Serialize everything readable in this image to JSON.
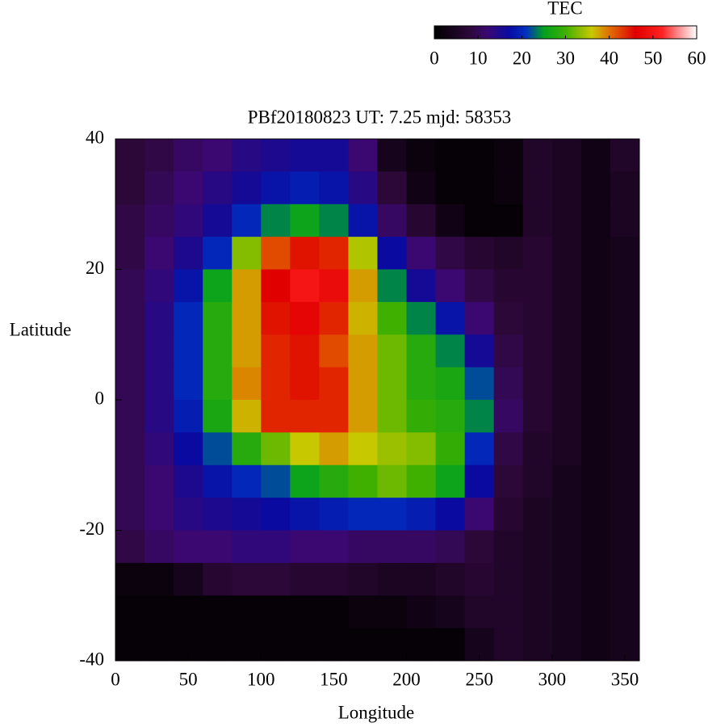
{
  "chart_data": {
    "type": "heatmap",
    "title": "PBf20180823  UT: 7.25  mjd: 58353",
    "x_label": "Longitude",
    "y_label": "Latitude",
    "colorbar_label": "TEC",
    "x": [
      10,
      30,
      50,
      70,
      90,
      110,
      130,
      150,
      170,
      190,
      210,
      230,
      250,
      270,
      290,
      310,
      330,
      350
    ],
    "y": [
      37.5,
      32.5,
      27.5,
      22.5,
      17.5,
      12.5,
      7.5,
      2.5,
      -2.5,
      -7.5,
      -12.5,
      -17.5,
      -22.5,
      -27.5,
      -32.5,
      -37.5
    ],
    "z": [
      [
        8,
        9,
        11,
        12,
        14,
        15,
        16,
        16,
        12,
        4,
        2,
        1,
        1,
        2,
        6,
        5,
        3,
        6
      ],
      [
        8,
        10,
        12,
        14,
        16,
        18,
        19,
        18,
        14,
        8,
        3,
        1,
        1,
        2,
        6,
        5,
        3,
        5
      ],
      [
        9,
        11,
        13,
        16,
        20,
        24,
        26,
        24,
        18,
        11,
        7,
        3,
        1,
        1,
        6,
        5,
        3,
        5
      ],
      [
        9,
        12,
        15,
        20,
        33,
        42,
        45,
        44,
        35,
        17,
        12,
        9,
        7,
        6,
        7,
        5,
        3,
        4
      ],
      [
        10,
        13,
        18,
        26,
        38,
        46,
        50,
        48,
        38,
        24,
        16,
        12,
        9,
        7,
        7,
        5,
        3,
        4
      ],
      [
        10,
        14,
        20,
        28,
        38,
        45,
        47,
        44,
        37,
        30,
        24,
        18,
        12,
        8,
        7,
        5,
        3,
        4
      ],
      [
        10,
        14,
        20,
        28,
        38,
        44,
        45,
        42,
        38,
        32,
        28,
        24,
        16,
        9,
        7,
        5,
        3,
        4
      ],
      [
        10,
        14,
        20,
        28,
        39,
        44,
        45,
        44,
        38,
        32,
        28,
        27,
        22,
        10,
        7,
        5,
        3,
        4
      ],
      [
        10,
        14,
        19,
        27,
        37,
        44,
        44,
        44,
        38,
        32,
        29,
        28,
        24,
        11,
        7,
        5,
        3,
        4
      ],
      [
        10,
        13,
        17,
        22,
        28,
        32,
        36,
        38,
        36,
        34,
        33,
        29,
        20,
        9,
        6,
        5,
        3,
        4
      ],
      [
        10,
        12,
        15,
        18,
        20,
        22,
        26,
        28,
        30,
        32,
        30,
        26,
        17,
        8,
        6,
        4,
        3,
        4
      ],
      [
        10,
        12,
        14,
        15,
        16,
        17,
        18,
        19,
        20,
        20,
        19,
        17,
        12,
        7,
        5,
        4,
        3,
        4
      ],
      [
        9,
        11,
        12,
        12,
        13,
        13,
        12,
        12,
        11,
        11,
        11,
        10,
        8,
        6,
        5,
        4,
        3,
        4
      ],
      [
        2,
        2,
        4,
        7,
        8,
        8,
        7,
        7,
        6,
        5,
        5,
        6,
        7,
        6,
        5,
        4,
        3,
        4
      ],
      [
        1,
        1,
        1,
        1,
        1,
        1,
        1,
        1,
        2,
        2,
        3,
        4,
        6,
        6,
        5,
        4,
        3,
        4
      ],
      [
        1,
        1,
        1,
        1,
        1,
        1,
        1,
        1,
        1,
        1,
        1,
        1,
        4,
        6,
        5,
        4,
        3,
        4
      ]
    ],
    "xlim": [
      0,
      360
    ],
    "ylim": [
      -40,
      40
    ],
    "zlim": [
      0,
      60
    ],
    "xticks": [
      0,
      50,
      100,
      150,
      200,
      250,
      300,
      350
    ],
    "yticks": [
      -40,
      -20,
      0,
      20,
      40
    ],
    "zticks": [
      0,
      10,
      20,
      30,
      40,
      50,
      60
    ],
    "colorscale": [
      [
        0,
        "#000000"
      ],
      [
        8,
        "#2c0838"
      ],
      [
        12,
        "#3a0870"
      ],
      [
        17,
        "#0a0aa0"
      ],
      [
        21,
        "#0030c0"
      ],
      [
        25,
        "#00a020"
      ],
      [
        30,
        "#40b000"
      ],
      [
        36,
        "#c8c800"
      ],
      [
        40,
        "#e07000"
      ],
      [
        46,
        "#e00000"
      ],
      [
        52,
        "#ff2020"
      ],
      [
        60,
        "#ffffff"
      ]
    ]
  }
}
